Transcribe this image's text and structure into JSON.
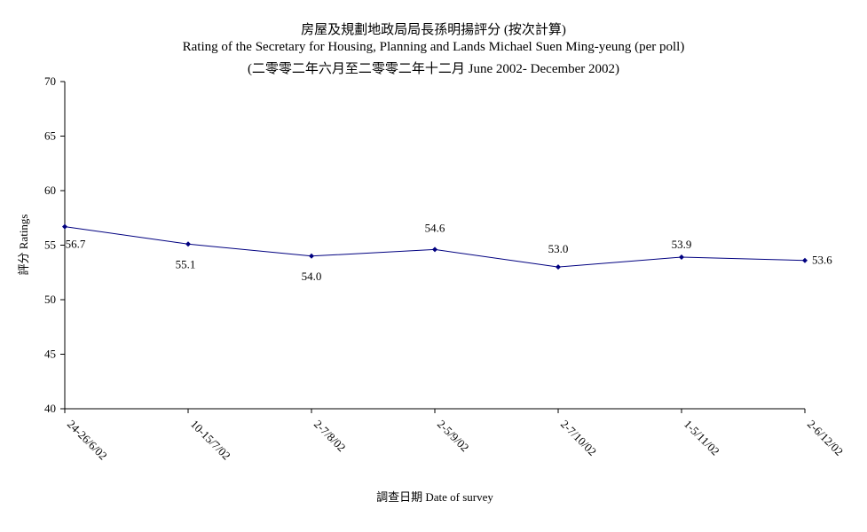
{
  "chart_data": {
    "type": "line",
    "title_zh": "房屋及規劃地政局局長孫明揚評分 (按次計算)",
    "title_en": "Rating of the Secretary for Housing, Planning and Lands Michael Suen Ming-yeung (per poll)",
    "subtitle": "(二零零二年六月至二零零二年十二月 June 2002- December 2002)",
    "xlabel": "調查日期 Date of survey",
    "ylabel": "評分 Ratings",
    "categories": [
      "24-26/6/02",
      "10-15/7/02",
      "2-7/8/02",
      "2-5/9/02",
      "2-7/10/02",
      "1-5/11/02",
      "2-6/12/02"
    ],
    "values": [
      56.7,
      55.1,
      54.0,
      54.6,
      53.0,
      53.9,
      53.6
    ],
    "value_labels": [
      "56.7",
      "55.1",
      "54.0",
      "54.6",
      "53.0",
      "53.9",
      "53.6"
    ],
    "ylim": [
      40,
      70
    ],
    "yticks": [
      "40",
      "45",
      "50",
      "55",
      "60",
      "65",
      "70"
    ],
    "grid": false,
    "line_color": "#000080",
    "marker_color": "#000080"
  }
}
